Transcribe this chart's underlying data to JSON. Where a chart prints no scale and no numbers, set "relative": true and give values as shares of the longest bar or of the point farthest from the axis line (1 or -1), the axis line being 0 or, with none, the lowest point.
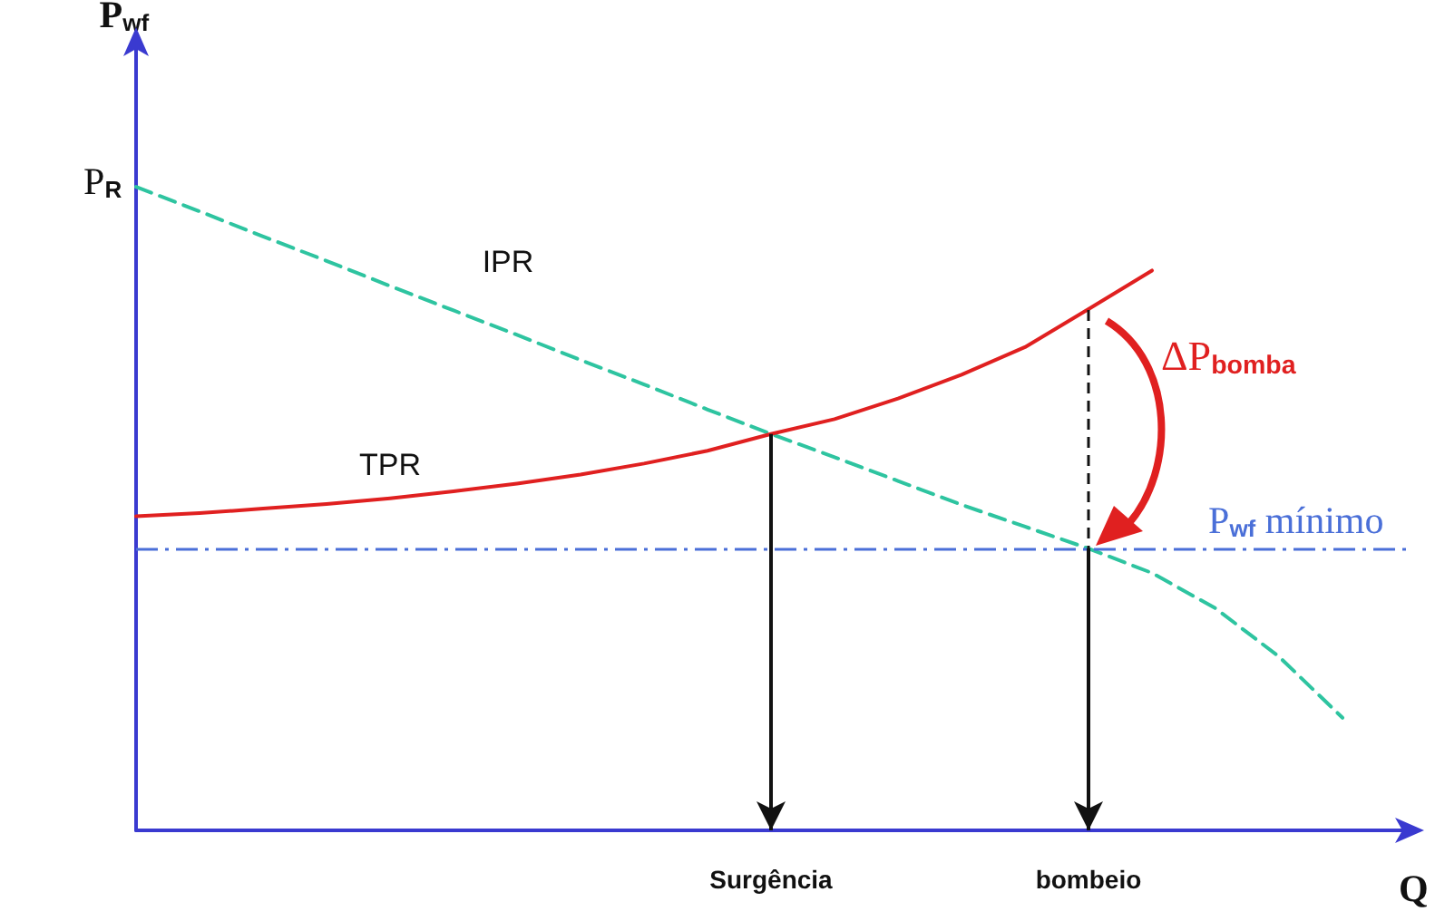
{
  "chart_data": {
    "type": "line",
    "relative": true,
    "xlabel": "Q",
    "ylabel": "P$_{wf}$",
    "marker": "none",
    "categories": [
      null,
      null,
      null,
      null,
      null,
      null,
      null,
      null,
      null,
      null,
      "Surgência",
      null,
      null,
      null,
      null,
      "bombeio",
      null,
      null,
      null,
      null,
      null
    ],
    "series": [
      {
        "name": "IPR",
        "color": "#2ec4a0",
        "line_style": "dashed",
        "values": [
          1,
          0.962,
          0.923,
          0.885,
          0.846,
          0.808,
          0.77,
          0.731,
          0.693,
          0.654,
          0.616,
          0.58,
          0.543,
          0.506,
          0.472,
          0.438,
          0.4,
          0.345,
          0.27,
          0.175,
          null
        ]
      },
      {
        "name": "TPR",
        "color": "#e02020",
        "line_style": "solid",
        "values": [
          0.488,
          0.493,
          0.5,
          0.507,
          0.516,
          0.527,
          0.539,
          0.553,
          0.57,
          0.59,
          0.616,
          0.639,
          0.671,
          0.708,
          0.751,
          0.81,
          0.87,
          null,
          null,
          null,
          null
        ]
      }
    ],
    "ref_lines": [
      {
        "axis": "y",
        "value": 0.438,
        "label": "P$_{wf}$ mínimo",
        "color": "#4a6fd8",
        "line_style": "dashdot"
      }
    ],
    "annotations": [
      "P$_{R}$",
      "ΔP$_{bomba}$"
    ]
  }
}
